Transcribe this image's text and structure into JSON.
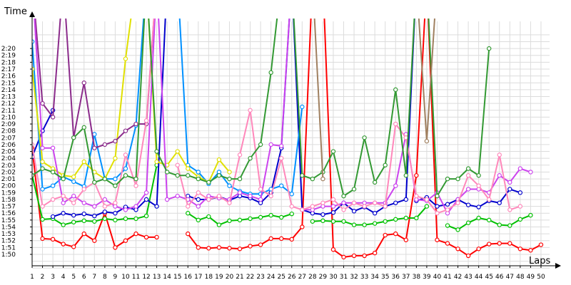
{
  "chart_data": {
    "type": "line",
    "title": "",
    "xlabel": "Laps",
    "ylabel": "Time",
    "xlim": [
      1,
      50
    ],
    "ylim_seconds": [
      108,
      142
    ],
    "x": [
      1,
      2,
      3,
      4,
      5,
      6,
      7,
      8,
      9,
      10,
      11,
      12,
      13,
      14,
      15,
      16,
      17,
      18,
      19,
      20,
      21,
      22,
      23,
      24,
      25,
      26,
      27,
      28,
      29,
      30,
      31,
      32,
      33,
      34,
      35,
      36,
      37,
      38,
      39,
      40,
      41,
      42,
      43,
      44,
      45,
      46,
      47,
      48,
      49,
      50
    ],
    "xticks": [
      "1",
      "2",
      "3",
      "4",
      "5",
      "6",
      "7",
      "8",
      "9",
      "10",
      "11",
      "12",
      "13",
      "14",
      "15",
      "16",
      "17",
      "18",
      "19",
      "20",
      "21",
      "22",
      "23",
      "24",
      "25",
      "26",
      "27",
      "28",
      "29",
      "30",
      "31",
      "32",
      "33",
      "34",
      "35",
      "36",
      "37",
      "38",
      "39",
      "40",
      "41",
      "42",
      "43",
      "44",
      "45",
      "46",
      "47",
      "48",
      "49",
      "50"
    ],
    "yticks": [
      "1:50",
      "1:51",
      "1:52",
      "1:53",
      "1:54",
      "1:55",
      "1:56",
      "1:57",
      "1:58",
      "1:59",
      "2:00",
      "2:01",
      "2:02",
      "2:03",
      "2:04",
      "2:05",
      "2:06",
      "2:07",
      "2:08",
      "2:09",
      "2:10",
      "2:11",
      "2:12",
      "2:13",
      "2:14",
      "2:15",
      "2:16",
      "2:17",
      "2:18",
      "2:19",
      "2:20"
    ],
    "grid": true,
    "series": [
      {
        "color": "#ff0000",
        "values": [
          125.5,
          112.3,
          112.2,
          111.5,
          111.1,
          113.0,
          112.0,
          116.0,
          111.0,
          112.0,
          113.0,
          112.5,
          112.5,
          null,
          null,
          113.0,
          111.0,
          110.9,
          111.0,
          110.9,
          110.8,
          111.2,
          111.4,
          112.3,
          112.3,
          112.2,
          114.0,
          150,
          150,
          110.7,
          109.6,
          109.8,
          109.8,
          110.2,
          112.8,
          113.0,
          112.1,
          121.5,
          150,
          112.1,
          111.6,
          110.8,
          109.8,
          110.8,
          111.5,
          111.6,
          111.6,
          110.8,
          110.6,
          111.4
        ]
      },
      {
        "color": "#00c000",
        "values": [
          121.5,
          115.1,
          115.2,
          114.3,
          114.7,
          114.9,
          114.8,
          115.2,
          115.0,
          115.2,
          115.2,
          115.6,
          123.0,
          null,
          null,
          116.0,
          115.0,
          115.5,
          114.3,
          114.9,
          115.0,
          115.2,
          115.4,
          115.7,
          115.4,
          115.9,
          null,
          114.8,
          114.9,
          114.8,
          114.8,
          114.3,
          114.3,
          114.5,
          114.8,
          115.1,
          115.3,
          115.3,
          117.0,
          null,
          114.2,
          113.6,
          114.6,
          115.3,
          115.0,
          114.3,
          114.2,
          115.1,
          115.7,
          null
        ]
      },
      {
        "color": "#0000cc",
        "values": [
          124.2,
          128.0,
          131.0,
          null,
          null,
          null,
          null,
          null,
          null,
          null,
          null,
          null,
          null,
          null,
          null,
          118.5,
          118.0,
          118.0,
          118.4,
          117.9,
          118.5,
          118.2,
          117.5,
          119.0,
          125.5,
          150,
          116.5,
          116.0,
          115.8,
          116.1,
          117.5,
          116.3,
          116.9,
          116.0,
          117.0,
          117.5,
          118.0,
          150,
          null,
          null,
          null,
          null,
          null,
          null,
          null,
          null,
          null,
          null,
          null,
          null
        ]
      },
      {
        "color": "#0000cc",
        "values": [
          null,
          null,
          115.5,
          116.0,
          115.7,
          115.9,
          115.6,
          116.2,
          116.0,
          116.9,
          116.5,
          118.0,
          117.0,
          150,
          null,
          null,
          null,
          null,
          null,
          null,
          null,
          null,
          null,
          null,
          null,
          null,
          null,
          null,
          null,
          null,
          null,
          null,
          null,
          null,
          null,
          null,
          null,
          117.8,
          118.3,
          117.0,
          117.3,
          118.0,
          117.2,
          116.9,
          117.8,
          117.5,
          119.5,
          119.0,
          null,
          null
        ]
      },
      {
        "color": "#0090ff",
        "values": [
          141,
          119.5,
          120.0,
          121.3,
          120.6,
          119.9,
          127.5,
          121.0,
          121.0,
          122.5,
          128.8,
          150,
          null,
          null,
          null,
          null,
          null,
          null,
          null,
          null,
          null,
          null,
          null,
          null,
          null,
          null,
          null,
          null,
          null,
          null,
          null,
          null,
          null,
          null,
          null,
          null,
          null,
          null,
          null,
          null,
          null,
          null,
          null,
          null,
          null,
          null,
          null,
          null,
          null,
          null
        ]
      },
      {
        "color": "#0090ff",
        "values": [
          null,
          null,
          null,
          null,
          null,
          null,
          null,
          null,
          null,
          null,
          null,
          null,
          null,
          null,
          150,
          123.0,
          122.0,
          120.3,
          122.0,
          120.0,
          119.2,
          118.8,
          118.8,
          119.5,
          120.0,
          118.8,
          131.5,
          null,
          null,
          null,
          null,
          null,
          null,
          null,
          null,
          null,
          null,
          null,
          null,
          null,
          null,
          null,
          null,
          null,
          null,
          null,
          null,
          null,
          null,
          null
        ]
      },
      {
        "color": "#e0e000",
        "values": [
          137,
          123.5,
          122.5,
          121.5,
          121.3,
          123.5,
          122.0,
          121.0,
          124.0,
          138.5,
          150,
          null,
          null,
          null,
          null,
          null,
          null,
          null,
          null,
          null,
          null,
          null,
          null,
          null,
          null,
          null,
          null,
          null,
          null,
          null,
          null,
          null,
          null,
          null,
          null,
          null,
          null,
          null,
          null,
          null,
          null,
          null,
          null,
          null,
          null,
          null,
          null,
          null,
          null,
          null
        ]
      },
      {
        "color": "#e0e000",
        "values": [
          null,
          null,
          null,
          null,
          null,
          null,
          null,
          null,
          null,
          null,
          null,
          150,
          123.5,
          123.0,
          125.0,
          122.5,
          121.3,
          120.5,
          123.8,
          122.0,
          null,
          null,
          null,
          null,
          null,
          null,
          null,
          null,
          null,
          null,
          null,
          null,
          null,
          null,
          null,
          null,
          null,
          null,
          null,
          null,
          null,
          null,
          null,
          null,
          null,
          null,
          null,
          null,
          null,
          null
        ]
      },
      {
        "color": "#8b2b8b",
        "values": [
          150,
          132.0,
          130.0,
          150,
          127.0,
          135.0,
          125.5,
          126.0,
          126.5,
          128.0,
          129.0,
          129.0,
          150,
          null,
          null,
          null,
          null,
          null,
          null,
          null,
          null,
          null,
          null,
          null,
          null,
          null,
          null,
          null,
          null,
          null,
          null,
          null,
          null,
          null,
          null,
          null,
          null,
          null,
          null,
          null,
          null,
          null,
          null,
          null,
          null,
          null,
          null,
          null,
          null,
          null
        ]
      },
      {
        "color": "#cc44ee",
        "values": [
          150,
          125.5,
          125.5,
          117.5,
          118.5,
          117.5,
          117.0,
          118.0,
          117.0,
          116.5,
          117.0,
          119.0,
          150,
          118.0,
          118.5,
          118.0,
          117.0,
          118.5,
          118.2,
          118.0,
          119.0,
          118.5,
          118.0,
          126.0,
          125.8,
          150,
          null,
          null,
          null,
          null,
          null,
          null,
          null,
          null,
          null,
          null,
          null,
          null,
          null,
          null,
          null,
          null,
          null,
          null,
          null,
          null,
          null,
          null,
          null,
          null
        ]
      },
      {
        "color": "#cc44ee",
        "values": [
          null,
          null,
          null,
          null,
          null,
          null,
          null,
          null,
          null,
          null,
          null,
          null,
          null,
          null,
          null,
          null,
          null,
          null,
          null,
          null,
          null,
          null,
          null,
          null,
          null,
          null,
          116.5,
          116.5,
          117.0,
          117.0,
          117.5,
          117.5,
          117.5,
          117.5,
          117.5,
          120.0,
          127.5,
          118.0,
          117.8,
          119.0,
          116.0,
          118.0,
          119.5,
          119.5,
          119.0,
          121.5,
          120.5,
          122.5,
          122.0,
          null
        ]
      },
      {
        "color": "#ff88bb",
        "values": [
          126.0,
          117.0,
          118.0,
          118.5,
          117.5,
          119.5,
          120.5,
          117.0,
          117.5,
          124.5,
          120.0,
          129.5,
          150,
          null,
          null,
          null,
          null,
          null,
          null,
          null,
          null,
          null,
          null,
          null,
          null,
          null,
          null,
          null,
          null,
          null,
          null,
          null,
          null,
          null,
          null,
          null,
          null,
          null,
          null,
          null,
          null,
          null,
          null,
          null,
          null,
          null,
          null,
          null,
          null,
          null
        ]
      },
      {
        "color": "#ff88bb",
        "values": [
          null,
          null,
          null,
          null,
          null,
          null,
          null,
          null,
          null,
          null,
          null,
          null,
          null,
          null,
          123.0,
          117.0,
          119.0,
          118.0,
          118.5,
          117.5,
          124.5,
          131.0,
          119.5,
          118.5,
          124.0,
          117.0,
          116.5,
          117.0,
          117.5,
          118.0,
          116.5,
          117.5,
          117.0,
          117.5,
          117.0,
          129.0,
          127.0,
          118.5,
          118.0,
          116.0,
          116.5,
          117.5,
          121.5,
          120.0,
          118.0,
          124.5,
          116.5,
          117.0,
          null,
          null
        ]
      },
      {
        "color": "#339933",
        "values": [
          121.5,
          122.5,
          122.0,
          121.0,
          127.0,
          128.5,
          120.5,
          121.0,
          120.0,
          121.5,
          121.0,
          150,
          125.0,
          122.0,
          121.5,
          121.5,
          121.0,
          120.5,
          121.5,
          121.0,
          121.0,
          124.0,
          126.0,
          136.5,
          150,
          150,
          121.5,
          121.0,
          122.0,
          125.0,
          118.5,
          119.5,
          127.0,
          120.5,
          123.0,
          134.0,
          121.5,
          150,
          150,
          118.5,
          121.0,
          121.0,
          122.5,
          121.5,
          140.0,
          null,
          null,
          null,
          null,
          null
        ]
      },
      {
        "color": "#a08060",
        "values": [
          null,
          null,
          null,
          null,
          null,
          null,
          null,
          null,
          null,
          null,
          null,
          null,
          null,
          null,
          null,
          null,
          null,
          null,
          null,
          null,
          null,
          null,
          null,
          null,
          null,
          null,
          null,
          150,
          121.0,
          null,
          null,
          null,
          null,
          null,
          null,
          null,
          null,
          150,
          126.5,
          150,
          null,
          null,
          null,
          null,
          null,
          null,
          null,
          null,
          null,
          null
        ]
      }
    ]
  }
}
